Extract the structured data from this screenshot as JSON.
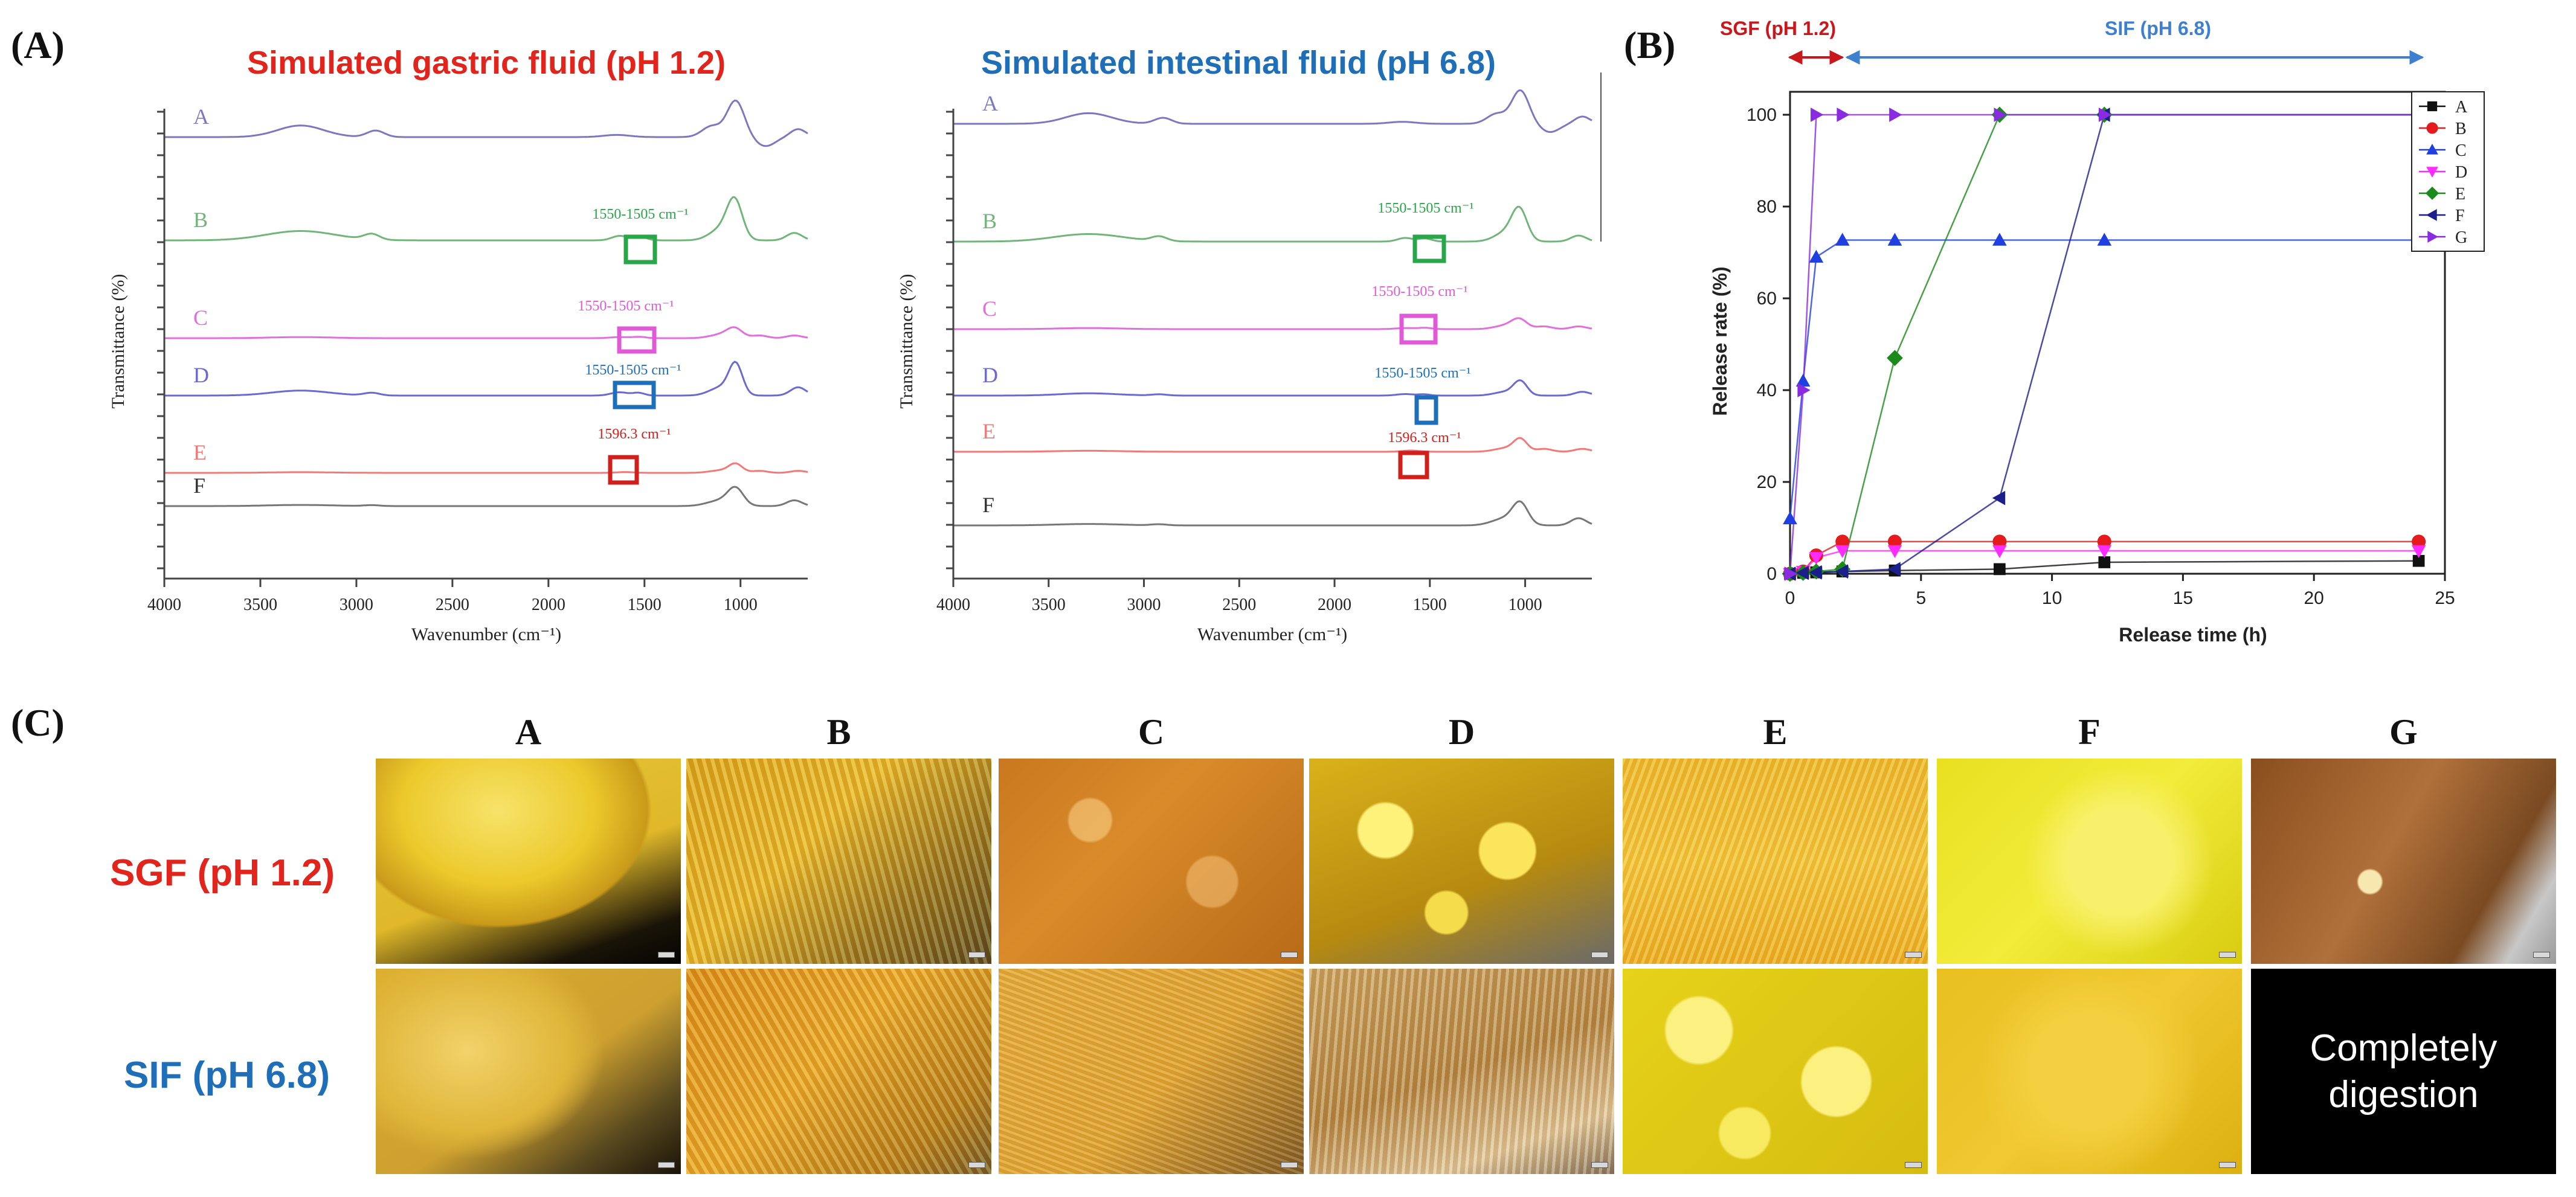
{
  "panel_labels": {
    "a": "(A)",
    "b": "(B)",
    "c": "(C)"
  },
  "colors": {
    "red": "#e1241c",
    "blue": "#1f6fb8",
    "green": "#2aa64a",
    "pink": "#e05ad8",
    "lightblue": "#3f7fd0",
    "darkred": "#c8181c"
  },
  "chart_data": [
    {
      "type": "line",
      "title": "Simulated gastric fluid (pH 1.2)",
      "xlabel": "Wavenumber (cm⁻¹)",
      "ylabel": "Transmittance (%)",
      "xlim": [
        4000,
        650
      ],
      "xticks": [
        "4000",
        "3500",
        "3000",
        "2500",
        "2000",
        "1500",
        "1000"
      ],
      "series_labels": [
        "A",
        "B",
        "C",
        "D",
        "E",
        "F"
      ],
      "series_colors": [
        "#7c78c0",
        "#72b57a",
        "#e070dc",
        "#6a6ad0",
        "#f07a7a",
        "#777777"
      ],
      "annotations": [
        {
          "series": "B",
          "text": "1550-1505 cm⁻¹",
          "color": "#2aa64a"
        },
        {
          "series": "C",
          "text": "1550-1505 cm⁻¹",
          "color": "#e05ad8"
        },
        {
          "series": "D",
          "text": "1550-1505 cm⁻¹",
          "color": "#1f6fb8"
        },
        {
          "series": "E",
          "text": "1596.3 cm⁻¹",
          "color": "#d0201c"
        }
      ]
    },
    {
      "type": "line",
      "title": "Simulated intestinal fluid (pH 6.8)",
      "xlabel": "Wavenumber (cm⁻¹)",
      "ylabel": "Transmittance (%)",
      "xlim": [
        4000,
        650
      ],
      "xticks": [
        "4000",
        "3500",
        "3000",
        "2500",
        "2000",
        "1500",
        "1000"
      ],
      "series_labels": [
        "A",
        "B",
        "C",
        "D",
        "E",
        "F"
      ],
      "series_colors": [
        "#7c78c0",
        "#72b57a",
        "#e070dc",
        "#6a6ad0",
        "#f07a7a",
        "#777777"
      ],
      "annotations": [
        {
          "series": "B",
          "text": "1550-1505 cm⁻¹",
          "color": "#2aa64a"
        },
        {
          "series": "C",
          "text": "1550-1505 cm⁻¹",
          "color": "#e05ad8"
        },
        {
          "series": "D",
          "text": "1550-1505 cm⁻¹",
          "color": "#1f6fb8"
        },
        {
          "series": "E",
          "text": "1596.3 cm⁻¹",
          "color": "#d0201c"
        }
      ]
    },
    {
      "type": "line",
      "title": "",
      "xlabel": "Release time (h)",
      "ylabel": "Release rate (%)",
      "xlim": [
        0,
        25
      ],
      "ylim": [
        0,
        105
      ],
      "xticks": [
        0,
        5,
        10,
        15,
        20,
        25
      ],
      "yticks": [
        0,
        20,
        40,
        60,
        80,
        100
      ],
      "phases": [
        {
          "label": "SGF (pH 1.2)",
          "from": 0,
          "to": 2,
          "color": "#c8181c"
        },
        {
          "label": "SIF (pH 6.8)",
          "from": 2,
          "to": 24,
          "color": "#3f7fd0"
        }
      ],
      "x": [
        0,
        0.5,
        1,
        2,
        4,
        8,
        12,
        24
      ],
      "series": [
        {
          "name": "A",
          "marker": "square",
          "color": "#111111",
          "values": [
            0,
            0.2,
            0.3,
            0.5,
            0.7,
            1.0,
            2.5,
            2.8
          ]
        },
        {
          "name": "B",
          "marker": "circle",
          "color": "#e41a1c",
          "values": [
            0,
            0.5,
            4,
            7,
            7,
            7,
            7,
            7
          ]
        },
        {
          "name": "C",
          "marker": "triangle-up",
          "color": "#1f3fe0",
          "values": [
            12,
            42,
            69,
            72.7,
            72.7,
            72.7,
            72.7,
            72.7
          ]
        },
        {
          "name": "D",
          "marker": "triangle-down",
          "color": "#ff2bff",
          "values": [
            0,
            0.5,
            3.5,
            5,
            5,
            5,
            5,
            5
          ]
        },
        {
          "name": "E",
          "marker": "diamond",
          "color": "#1a8a1a",
          "values": [
            0,
            0.2,
            0.5,
            1,
            47,
            100,
            100,
            100
          ]
        },
        {
          "name": "F",
          "marker": "triangle-left",
          "color": "#1b1f8a",
          "values": [
            0,
            0.2,
            0.3,
            0.5,
            1,
            16.5,
            100,
            100
          ]
        },
        {
          "name": "G",
          "marker": "triangle-right",
          "color": "#8a2be2",
          "values": [
            0,
            40,
            100,
            100,
            100,
            100,
            100,
            100
          ]
        }
      ]
    }
  ],
  "panel_c": {
    "columns": [
      "A",
      "B",
      "C",
      "D",
      "E",
      "F",
      "G"
    ],
    "rows": [
      {
        "label": "SGF (pH 1.2)",
        "color": "#e1241c"
      },
      {
        "label": "SIF (pH 6.8)",
        "color": "#1f6fb8"
      }
    ],
    "completely_digestion": "Completely digestion"
  }
}
